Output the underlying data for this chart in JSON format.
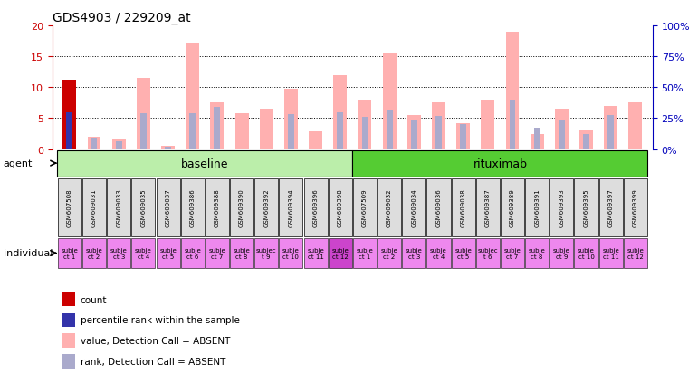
{
  "title": "GDS4903 / 229209_at",
  "samples": [
    "GSM607508",
    "GSM609031",
    "GSM609033",
    "GSM609035",
    "GSM609037",
    "GSM609386",
    "GSM609388",
    "GSM609390",
    "GSM609392",
    "GSM609394",
    "GSM609396",
    "GSM609398",
    "GSM607509",
    "GSM609032",
    "GSM609034",
    "GSM609036",
    "GSM609038",
    "GSM609387",
    "GSM609389",
    "GSM609391",
    "GSM609393",
    "GSM609395",
    "GSM609397",
    "GSM609399"
  ],
  "count_values": [
    11.2,
    0,
    0,
    0,
    0,
    0,
    0,
    0,
    0,
    0,
    0,
    0,
    0,
    0,
    0,
    0,
    0,
    0,
    0,
    0,
    0,
    0,
    0,
    0
  ],
  "percentile_values": [
    6.0,
    0,
    0,
    0,
    0,
    0,
    0,
    0,
    0,
    0,
    0,
    0,
    0,
    0,
    0,
    0,
    0,
    0,
    0,
    0,
    0,
    0,
    0,
    0
  ],
  "absent_value": [
    0,
    2.0,
    1.5,
    11.5,
    0.5,
    17.0,
    7.5,
    5.8,
    6.5,
    9.8,
    2.8,
    12.0,
    8.0,
    15.5,
    5.5,
    7.5,
    4.2,
    8.0,
    19.0,
    2.5,
    6.5,
    3.0,
    7.0,
    7.5
  ],
  "absent_rank": [
    0,
    1.8,
    1.3,
    5.8,
    0.4,
    5.8,
    6.8,
    0,
    0,
    5.6,
    0,
    6.0,
    5.2,
    6.2,
    4.8,
    5.4,
    4.0,
    0,
    8.0,
    3.5,
    4.8,
    2.5,
    5.5,
    0
  ],
  "individuals_baseline": [
    [
      "subje",
      "ct 1"
    ],
    [
      "subje",
      "ct 2"
    ],
    [
      "subje",
      "ct 3"
    ],
    [
      "subje",
      "ct 4"
    ],
    [
      "subje",
      "ct 5"
    ],
    [
      "subje",
      "ct 6"
    ],
    [
      "subje",
      "ct 7"
    ],
    [
      "subje",
      "ct 8"
    ],
    [
      "subjec",
      "t 9"
    ],
    [
      "subje",
      "ct 10"
    ],
    [
      "subje",
      "ct 11"
    ],
    [
      "subje",
      "ct 12"
    ]
  ],
  "individuals_rituximab": [
    [
      "subje",
      "ct 1"
    ],
    [
      "subje",
      "ct 2"
    ],
    [
      "subje",
      "ct 3"
    ],
    [
      "subje",
      "ct 4"
    ],
    [
      "subje",
      "ct 5"
    ],
    [
      "subjec",
      "t 6"
    ],
    [
      "subje",
      "ct 7"
    ],
    [
      "subje",
      "ct 8"
    ],
    [
      "subje",
      "ct 9"
    ],
    [
      "subje",
      "ct 10"
    ],
    [
      "subje",
      "ct 11"
    ],
    [
      "subje",
      "ct 12"
    ]
  ],
  "highlight_baseline": [
    false,
    false,
    false,
    false,
    false,
    false,
    false,
    false,
    false,
    false,
    false,
    true
  ],
  "highlight_rituximab": [
    false,
    false,
    false,
    false,
    false,
    false,
    false,
    false,
    false,
    false,
    false,
    false
  ],
  "color_count": "#cc0000",
  "color_percentile": "#3333aa",
  "color_absent_value": "#ffb0b0",
  "color_absent_rank": "#aaaacc",
  "color_baseline_bg": "#bbeeaa",
  "color_rituximab_bg": "#55cc33",
  "color_individual_normal": "#ee88ee",
  "color_individual_highlight": "#cc44cc",
  "color_axis_left": "#cc0000",
  "color_axis_right": "#0000bb",
  "color_sample_box": "#dddddd",
  "ylim_left": [
    0,
    20
  ],
  "ylim_right": [
    0,
    100
  ],
  "yticks_left": [
    0,
    5,
    10,
    15,
    20
  ],
  "yticks_right": [
    0,
    25,
    50,
    75,
    100
  ],
  "bar_width": 0.55,
  "rank_bar_width": 0.25
}
